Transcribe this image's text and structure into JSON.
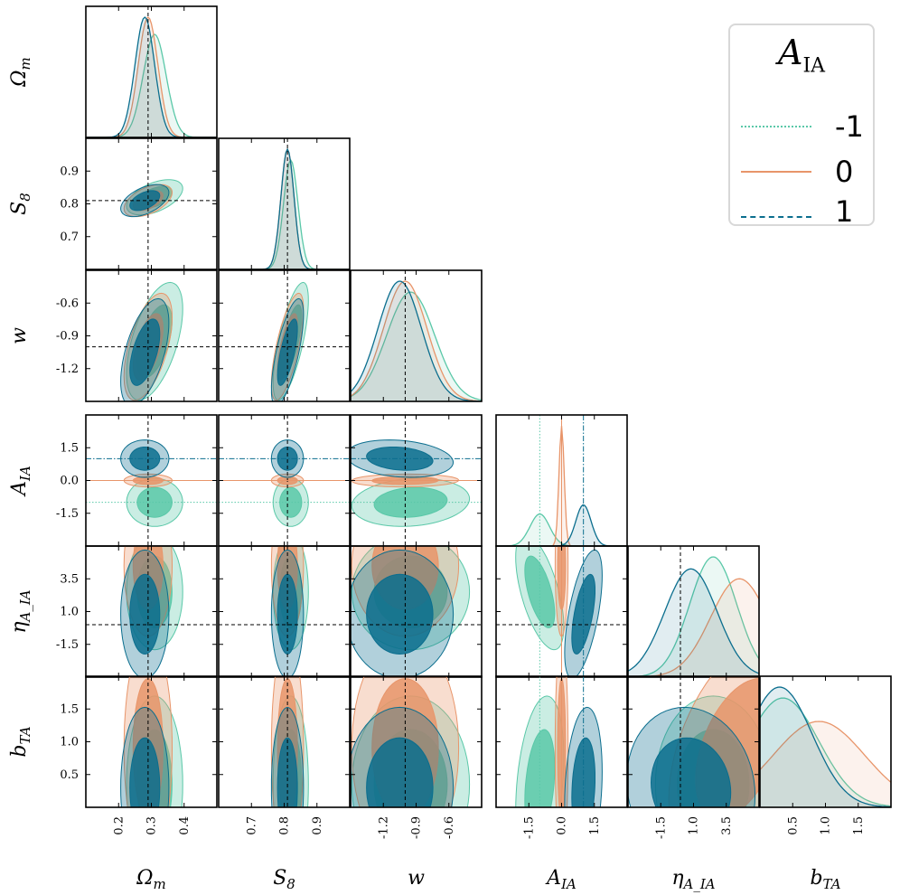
{
  "chart_data": {
    "type": "corner",
    "title": "",
    "parameters": [
      {
        "key": "Om",
        "name": "Ω",
        "sub": "m",
        "label": "Ω_m",
        "range": [
          0.1,
          0.5
        ],
        "ticks": [
          0.2,
          0.3,
          0.4
        ],
        "tick_labels": [
          "0.2",
          "0.3",
          "0.4"
        ],
        "truth": 0.29
      },
      {
        "key": "S8",
        "name": "S",
        "sub": "8",
        "label": "S_8",
        "range": [
          0.6,
          1.0
        ],
        "ticks": [
          0.7,
          0.8,
          0.9
        ],
        "tick_labels": [
          "0.7",
          "0.8",
          "0.9"
        ],
        "truth": 0.81
      },
      {
        "key": "w",
        "name": "w",
        "sub": "",
        "label": "w",
        "range": [
          -1.5,
          -0.3
        ],
        "ticks": [
          -1.2,
          -0.9,
          -0.6
        ],
        "tick_labels": [
          "-1.2",
          "-0.9",
          "-0.6"
        ],
        "truth": -1.0
      },
      {
        "key": "AIA",
        "name": "A",
        "sub": "IA",
        "label": "A_IA",
        "range": [
          -3.0,
          3.0
        ],
        "ticks": [
          -1.5,
          0.0,
          1.5
        ],
        "tick_labels": [
          "-1.5",
          "0.0",
          "1.5"
        ],
        "truth": null
      },
      {
        "key": "eta",
        "name": "η",
        "sub": "A_IA",
        "label": "η_A_IA",
        "range": [
          -4.0,
          6.0
        ],
        "ticks": [
          -1.5,
          1.0,
          3.5
        ],
        "tick_labels": [
          "-1.5",
          "1.0",
          "3.5"
        ],
        "truth": 0.0
      },
      {
        "key": "bTA",
        "name": "b",
        "sub": "TA",
        "label": "b_TA",
        "range": [
          0.0,
          2.0
        ],
        "ticks": [
          0.5,
          1.0,
          1.5
        ],
        "tick_labels": [
          "0.5",
          "1.0",
          "1.5"
        ],
        "truth": null
      }
    ],
    "legend": {
      "title": "A",
      "title_sub": "IA",
      "location": "top-right",
      "entries": [
        {
          "label": "-1",
          "color": "#5ac8a8",
          "style": "dotted",
          "value": -1
        },
        {
          "label": "0",
          "color": "#e8956a",
          "style": "solid",
          "value": 0
        },
        {
          "label": "1",
          "color": "#0b6e8e",
          "style": "dashdot",
          "value": 1
        }
      ]
    },
    "series": [
      {
        "name": "A_IA = -1",
        "color": "#5ac8a8",
        "mean": {
          "Om": 0.31,
          "S8": 0.82,
          "w": -0.95,
          "AIA": -1.0,
          "eta": 2.5,
          "bTA": 0.35
        },
        "sigma": {
          "Om": 0.035,
          "S8": 0.022,
          "w": 0.22,
          "AIA": 0.45,
          "eta": 1.8,
          "bTA": 0.55
        },
        "corr": {
          "Om|S8": 0.5,
          "Om|w": 0.55,
          "S8|w": 0.7,
          "w|AIA": 0.15,
          "AIA|eta": -0.6,
          "AIA|bTA": 0.3,
          "eta|bTA": 0.0
        }
      },
      {
        "name": "A_IA = 0",
        "color": "#e8956a",
        "mean": {
          "Om": 0.29,
          "S8": 0.81,
          "w": -1.0,
          "AIA": 0.0,
          "eta": 4.5,
          "bTA": 0.9
        },
        "sigma": {
          "Om": 0.03,
          "S8": 0.02,
          "w": 0.2,
          "AIA": 0.12,
          "eta": 2.2,
          "bTA": 0.7
        },
        "corr": {
          "Om|S8": 0.5,
          "Om|w": 0.55,
          "S8|w": 0.7,
          "w|AIA": 0.05,
          "AIA|eta": 0.0,
          "AIA|bTA": 0.0,
          "eta|bTA": 0.45
        }
      },
      {
        "name": "A_IA = 1",
        "color": "#0b6e8e",
        "mean": {
          "Om": 0.28,
          "S8": 0.81,
          "w": -1.05,
          "AIA": 1.0,
          "eta": 0.8,
          "bTA": 0.3
        },
        "sigma": {
          "Om": 0.03,
          "S8": 0.02,
          "w": 0.2,
          "AIA": 0.35,
          "eta": 2.0,
          "bTA": 0.5
        },
        "corr": {
          "Om|S8": 0.5,
          "Om|w": 0.55,
          "S8|w": 0.7,
          "w|AIA": -0.2,
          "AIA|eta": 0.6,
          "AIA|bTA": 0.2,
          "eta|bTA": -0.1
        }
      }
    ],
    "reference_lines": {
      "AIA": [
        {
          "value": -1.0,
          "color": "#5ac8a8",
          "style": "dotted"
        },
        {
          "value": 0.0,
          "color": "#e8956a",
          "style": "solid"
        },
        {
          "value": 1.0,
          "color": "#0b6e8e",
          "style": "dashdot"
        }
      ]
    },
    "prior_shading_color": "#dcdcdc",
    "contour_levels": [
      "68%",
      "95%"
    ]
  }
}
